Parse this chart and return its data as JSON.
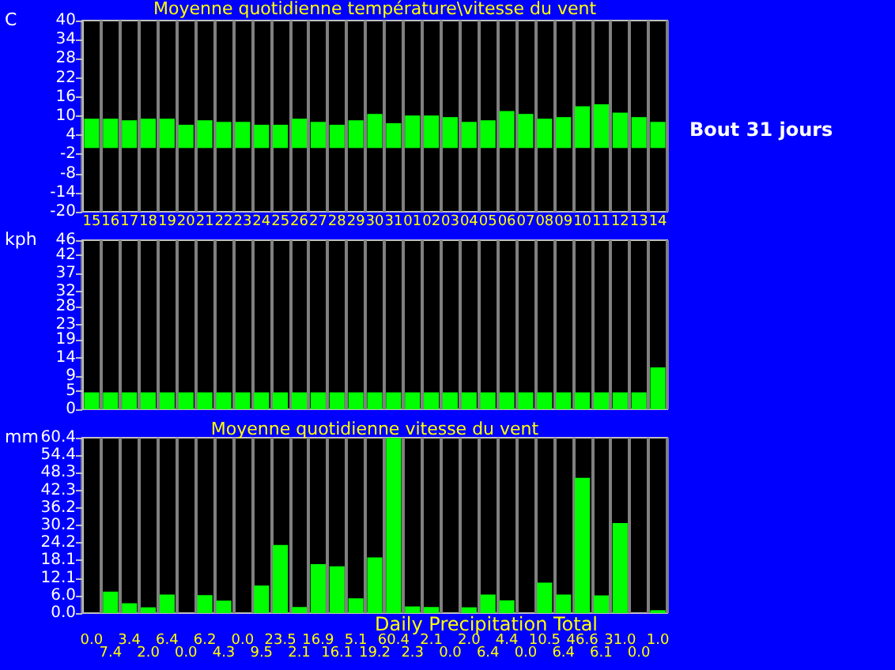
{
  "chart_data": [
    {
      "type": "bar",
      "title": "Moyenne quotidienne température\\vitesse du vent",
      "ylabel": "C",
      "annotations": [
        "Bout 31 jours"
      ],
      "categories": [
        "15",
        "16",
        "17",
        "18",
        "19",
        "20",
        "21",
        "22",
        "23",
        "24",
        "25",
        "26",
        "27",
        "28",
        "29",
        "30",
        "31",
        "01",
        "02",
        "03",
        "04",
        "05",
        "06",
        "07",
        "08",
        "09",
        "10",
        "11",
        "12",
        "13",
        "14"
      ],
      "values": [
        9.2,
        9.2,
        8.7,
        9.2,
        9.2,
        7.3,
        8.7,
        8.2,
        8.2,
        7.3,
        7.3,
        9.2,
        8.2,
        7.3,
        8.7,
        10.7,
        7.8,
        10.2,
        10.2,
        9.7,
        8.2,
        8.7,
        11.6,
        10.7,
        9.2,
        9.7,
        13.1,
        13.7,
        11.1,
        9.7,
        8.2
      ],
      "color": "#00ff00",
      "ylim": [
        -20,
        40
      ],
      "yticks": [
        -20,
        -14,
        -8,
        -2,
        4,
        10,
        16,
        22,
        28,
        34,
        40
      ],
      "grid": "x"
    },
    {
      "type": "bar",
      "ylabel": "kph",
      "tick_labels": "y",
      "categories": [
        "15",
        "16",
        "17",
        "18",
        "19",
        "20",
        "21",
        "22",
        "23",
        "24",
        "25",
        "26",
        "27",
        "28",
        "29",
        "30",
        "31",
        "01",
        "02",
        "03",
        "04",
        "05",
        "06",
        "07",
        "08",
        "09",
        "10",
        "11",
        "12",
        "13",
        "14"
      ],
      "values": [
        4.6,
        4.6,
        4.6,
        4.6,
        4.6,
        4.6,
        4.6,
        4.6,
        4.6,
        4.6,
        4.6,
        4.6,
        4.6,
        4.6,
        4.6,
        4.6,
        4.6,
        4.6,
        4.6,
        4.6,
        4.6,
        4.6,
        4.6,
        4.6,
        4.6,
        4.6,
        4.6,
        4.6,
        4.6,
        4.6,
        11.4
      ],
      "color": "#00ff00",
      "ylim": [
        0,
        46
      ],
      "yticks": [
        0,
        5,
        9,
        14,
        19,
        23,
        28,
        32,
        37,
        42,
        46
      ],
      "grid": "x"
    },
    {
      "type": "bar",
      "title": "Moyenne quotidienne vitesse du vent",
      "xlabel": "Daily Precipitation Total",
      "ylabel": "mm",
      "tick_labels": "y",
      "categories": [
        "15",
        "16",
        "17",
        "18",
        "19",
        "20",
        "21",
        "22",
        "23",
        "24",
        "25",
        "26",
        "27",
        "28",
        "29",
        "30",
        "31",
        "01",
        "02",
        "03",
        "04",
        "05",
        "06",
        "07",
        "08",
        "09",
        "10",
        "11",
        "12",
        "13",
        "14"
      ],
      "values": [
        0.0,
        7.4,
        3.4,
        2.0,
        6.4,
        0.0,
        6.2,
        4.3,
        0.0,
        9.5,
        23.5,
        2.1,
        16.9,
        16.1,
        5.1,
        19.2,
        60.4,
        2.3,
        2.1,
        0.0,
        2.0,
        6.4,
        4.4,
        0.0,
        10.5,
        6.4,
        46.6,
        6.1,
        31.0,
        0.0,
        1.0
      ],
      "value_labels": [
        "0.0",
        "7.4",
        "3.4",
        "2.0",
        "6.4",
        "0.0",
        "6.2",
        "4.3",
        "0.0",
        "9.5",
        "23.5",
        "2.1",
        "16.9",
        "16.1",
        "5.1",
        "19.2",
        "60.4",
        "2.3",
        "2.1",
        "0.0",
        "2.0",
        "6.4",
        "4.4",
        "0.0",
        "10.5",
        "6.4",
        "46.6",
        "6.1",
        "31.0",
        "0.0",
        "1.0"
      ],
      "color": "#00ff00",
      "ylim": [
        0,
        60.4
      ],
      "yticks": [
        {
          "value": 0,
          "label": "0.0"
        },
        {
          "value": 6.04,
          "label": "6.0"
        },
        {
          "value": 12.08,
          "label": "12.1"
        },
        {
          "value": 18.12,
          "label": "18.1"
        },
        {
          "value": 24.16,
          "label": "24.2"
        },
        {
          "value": 30.2,
          "label": "30.2"
        },
        {
          "value": 36.24,
          "label": "36.2"
        },
        {
          "value": 42.28,
          "label": "42.3"
        },
        {
          "value": 48.32,
          "label": "48.3"
        },
        {
          "value": 54.36,
          "label": "54.4"
        },
        {
          "value": 60.4,
          "label": "60.4"
        }
      ],
      "grid": "x"
    }
  ]
}
